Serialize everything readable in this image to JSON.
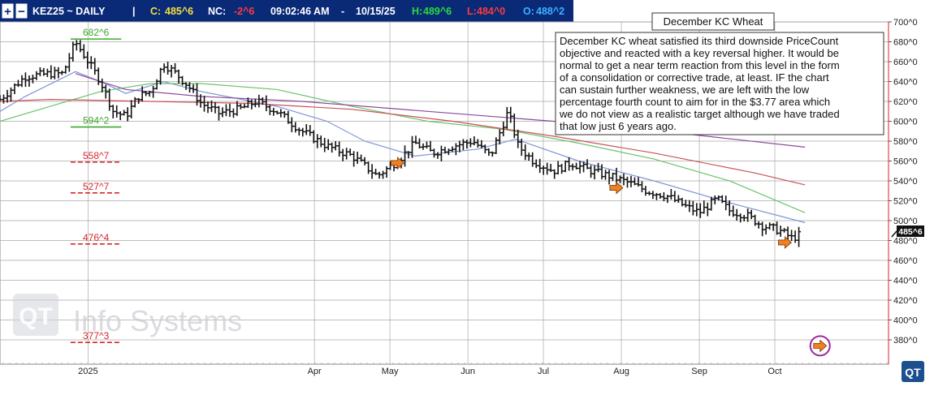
{
  "header": {
    "symbol": "KEZ25 ~ DAILY",
    "separator": "|",
    "close_label": "C:",
    "close_value": "485^6",
    "nc_label": "NC:",
    "nc_value": "-2^6",
    "time": "09:02:46 AM",
    "dash": "-",
    "date": "10/15/25",
    "high_label": "H:",
    "high_value": "489^6",
    "low_label": "L:",
    "low_value": "484^0",
    "open_label": "O:",
    "open_value": "488^2"
  },
  "annotation": {
    "title": "December KC Wheat",
    "lines": [
      "December KC wheat satisfied its third downside PriceCount",
      "objective and reacted with a key reversal higher.  It would be",
      "normal to get a near term reaction from this level in the form",
      "of a consolidation or corrective trade, at least.  IF the chart",
      "can sustain further weakness, we are left with the low",
      "percentage fourth count to aim for in the $3.77 area which",
      "we do not view as a realistic target although we have traded",
      "that low just 6 years ago."
    ]
  },
  "watermark": {
    "logo": "QT",
    "text": "Info Systems"
  },
  "corner_logo": "QT",
  "last_price_tag": "485^6",
  "colors": {
    "header_bg": "#0a2a78",
    "green_text": "#2bdc3c",
    "red_text": "#ff3b3b",
    "blue_text": "#3fb2ff",
    "yellow_text": "#f5e23a",
    "green_level": "#3caa2a",
    "red_level": "#d8262b",
    "arrow": "#f08020",
    "circle": "#9c2a9c",
    "ma_green": "#69c36b",
    "ma_blue": "#7f96d6",
    "ma_red": "#c8525a",
    "ma_purple": "#8a4a9a"
  },
  "chart_data": {
    "type": "bar",
    "subtype": "ohlc",
    "ylim": [
      370,
      705
    ],
    "y_ticks": [
      "700^0",
      "680^0",
      "660^0",
      "640^0",
      "620^0",
      "600^0",
      "580^0",
      "560^0",
      "540^0",
      "520^0",
      "500^0",
      "480^0",
      "460^0",
      "440^0",
      "420^0",
      "400^0",
      "380^0"
    ],
    "y_tick_values": [
      700,
      680,
      660,
      640,
      620,
      600,
      580,
      560,
      540,
      520,
      500,
      480,
      460,
      440,
      420,
      400,
      380
    ],
    "x_labels": [
      "2025",
      "Apr",
      "May",
      "Jun",
      "Jul",
      "Aug",
      "Sep",
      "Oct"
    ],
    "x_label_days": [
      15,
      105,
      135,
      166,
      196,
      227,
      258,
      288
    ],
    "x_range_days": [
      -20,
      319
    ],
    "grid": true,
    "price_levels": [
      {
        "label": "682^6",
        "value": 682.75,
        "color": "green",
        "style": "solid",
        "day_from": 10,
        "day_to": 25
      },
      {
        "label": "594^2",
        "value": 594.25,
        "color": "green",
        "style": "solid",
        "day_from": 10,
        "day_to": 25
      },
      {
        "label": "558^7",
        "value": 558.875,
        "color": "red",
        "style": "dashed",
        "day_from": 10,
        "day_to": 25
      },
      {
        "label": "527^7",
        "value": 527.875,
        "color": "red",
        "style": "dashed",
        "day_from": 10,
        "day_to": 25
      },
      {
        "label": "476^4",
        "value": 476.5,
        "color": "red",
        "style": "dashed",
        "day_from": 10,
        "day_to": 25
      },
      {
        "label": "377^3",
        "value": 377.375,
        "color": "red",
        "style": "dashed",
        "day_from": 10,
        "day_to": 25
      }
    ],
    "arrows": [
      {
        "day": 138,
        "value": 558
      },
      {
        "day": 225,
        "value": 533
      },
      {
        "day": 292,
        "value": 478
      },
      {
        "day": 306,
        "value": 374
      }
    ],
    "ohlc_anchors": [
      {
        "day": -20,
        "close": 622
      },
      {
        "day": -10,
        "close": 645
      },
      {
        "day": 0,
        "close": 648
      },
      {
        "day": 5,
        "close": 648
      },
      {
        "day": 10,
        "close": 680
      },
      {
        "day": 15,
        "close": 660
      },
      {
        "day": 20,
        "close": 640
      },
      {
        "day": 25,
        "close": 610
      },
      {
        "day": 30,
        "close": 605
      },
      {
        "day": 35,
        "close": 625
      },
      {
        "day": 40,
        "close": 630
      },
      {
        "day": 45,
        "close": 658
      },
      {
        "day": 50,
        "close": 648
      },
      {
        "day": 55,
        "close": 635
      },
      {
        "day": 60,
        "close": 618
      },
      {
        "day": 67,
        "close": 608
      },
      {
        "day": 75,
        "close": 612
      },
      {
        "day": 82,
        "close": 620
      },
      {
        "day": 90,
        "close": 610
      },
      {
        "day": 100,
        "close": 590
      },
      {
        "day": 110,
        "close": 575
      },
      {
        "day": 120,
        "close": 565
      },
      {
        "day": 130,
        "close": 545
      },
      {
        "day": 138,
        "close": 560
      },
      {
        "day": 145,
        "close": 578
      },
      {
        "day": 152,
        "close": 568
      },
      {
        "day": 160,
        "close": 575
      },
      {
        "day": 168,
        "close": 580
      },
      {
        "day": 175,
        "close": 565
      },
      {
        "day": 182,
        "close": 610
      },
      {
        "day": 186,
        "close": 575
      },
      {
        "day": 192,
        "close": 560
      },
      {
        "day": 200,
        "close": 550
      },
      {
        "day": 207,
        "close": 558
      },
      {
        "day": 215,
        "close": 550
      },
      {
        "day": 222,
        "close": 545
      },
      {
        "day": 230,
        "close": 538
      },
      {
        "day": 237,
        "close": 530
      },
      {
        "day": 245,
        "close": 525
      },
      {
        "day": 252,
        "close": 515
      },
      {
        "day": 258,
        "close": 508
      },
      {
        "day": 265,
        "close": 522
      },
      {
        "day": 270,
        "close": 510
      },
      {
        "day": 277,
        "close": 505
      },
      {
        "day": 283,
        "close": 495
      },
      {
        "day": 290,
        "close": 490
      },
      {
        "day": 295,
        "close": 482
      },
      {
        "day": 298,
        "close": 486
      }
    ],
    "moving_averages": [
      {
        "color": "blue",
        "points": [
          [
            -20,
            610
          ],
          [
            -10,
            625
          ],
          [
            10,
            650
          ],
          [
            20,
            640
          ],
          [
            30,
            628
          ],
          [
            45,
            640
          ],
          [
            60,
            630
          ],
          [
            90,
            615
          ],
          [
            110,
            600
          ],
          [
            125,
            580
          ],
          [
            145,
            565
          ],
          [
            170,
            572
          ],
          [
            185,
            582
          ],
          [
            210,
            560
          ],
          [
            240,
            540
          ],
          [
            270,
            518
          ],
          [
            300,
            498
          ]
        ]
      },
      {
        "color": "green",
        "points": [
          [
            -20,
            600
          ],
          [
            0,
            615
          ],
          [
            20,
            630
          ],
          [
            40,
            638
          ],
          [
            60,
            638
          ],
          [
            90,
            632
          ],
          [
            120,
            615
          ],
          [
            150,
            600
          ],
          [
            180,
            592
          ],
          [
            210,
            578
          ],
          [
            240,
            562
          ],
          [
            270,
            540
          ],
          [
            300,
            508
          ]
        ]
      },
      {
        "color": "red",
        "points": [
          [
            -20,
            620
          ],
          [
            0,
            622
          ],
          [
            40,
            620
          ],
          [
            80,
            618
          ],
          [
            120,
            612
          ],
          [
            160,
            600
          ],
          [
            200,
            585
          ],
          [
            240,
            568
          ],
          [
            280,
            548
          ],
          [
            300,
            536
          ]
        ]
      },
      {
        "color": "purple",
        "points": [
          [
            10,
            648
          ],
          [
            30,
            632
          ],
          [
            60,
            625
          ],
          [
            100,
            620
          ],
          [
            150,
            610
          ],
          [
            200,
            600
          ],
          [
            250,
            588
          ],
          [
            300,
            574
          ]
        ]
      }
    ]
  }
}
